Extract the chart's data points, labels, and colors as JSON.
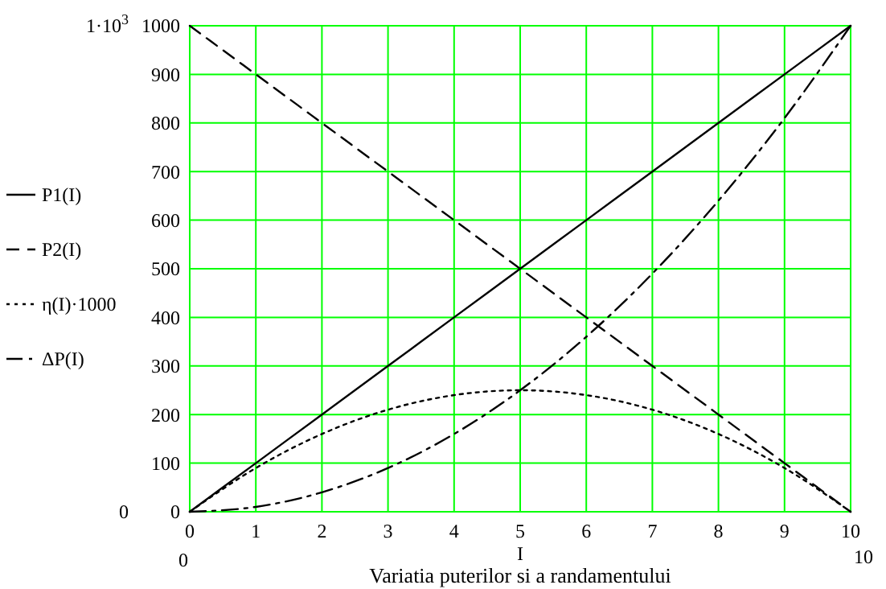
{
  "chart_data": {
    "type": "line",
    "title": "Variatia puterilor si a randamentului",
    "xlabel": "I",
    "x": [
      0,
      1,
      2,
      3,
      4,
      5,
      6,
      7,
      8,
      9,
      10
    ],
    "xlim": [
      0,
      10
    ],
    "xticks": [
      0,
      1,
      2,
      3,
      4,
      5,
      6,
      7,
      8,
      9,
      10
    ],
    "ylim": [
      0,
      1000
    ],
    "yticks": [
      0,
      100,
      200,
      300,
      400,
      500,
      600,
      700,
      800,
      900,
      1000
    ],
    "grid": true,
    "legend": "left",
    "marker": "none",
    "y2lim": [
      0,
      1000
    ],
    "y2ticks": [
      {
        "value": 0,
        "label": "0"
      },
      {
        "value": 1000,
        "label": "1·10$^{3}$"
      }
    ],
    "annotations": [
      "0",
      "10"
    ],
    "series": [
      {
        "name": "P1(I)",
        "color": "#000000",
        "line_style": "solid",
        "values": [
          0,
          100,
          200,
          300,
          400,
          500,
          600,
          700,
          800,
          900,
          1000
        ]
      },
      {
        "name": "P2(I)",
        "color": "#000000",
        "line_style": "dashed",
        "values": [
          1000,
          900,
          800,
          700,
          600,
          500,
          400,
          300,
          200,
          100,
          0
        ]
      },
      {
        "name": "η(I)·1000",
        "color": "#000000",
        "line_style": "dotted",
        "values": [
          0,
          90,
          160,
          210,
          240,
          250,
          240,
          210,
          160,
          90,
          0
        ]
      },
      {
        "name": "ΔP(I)",
        "color": "#000000",
        "line_style": "dashdot",
        "values": [
          0,
          10,
          40,
          90,
          160,
          250,
          360,
          490,
          640,
          810,
          1000
        ]
      }
    ]
  }
}
